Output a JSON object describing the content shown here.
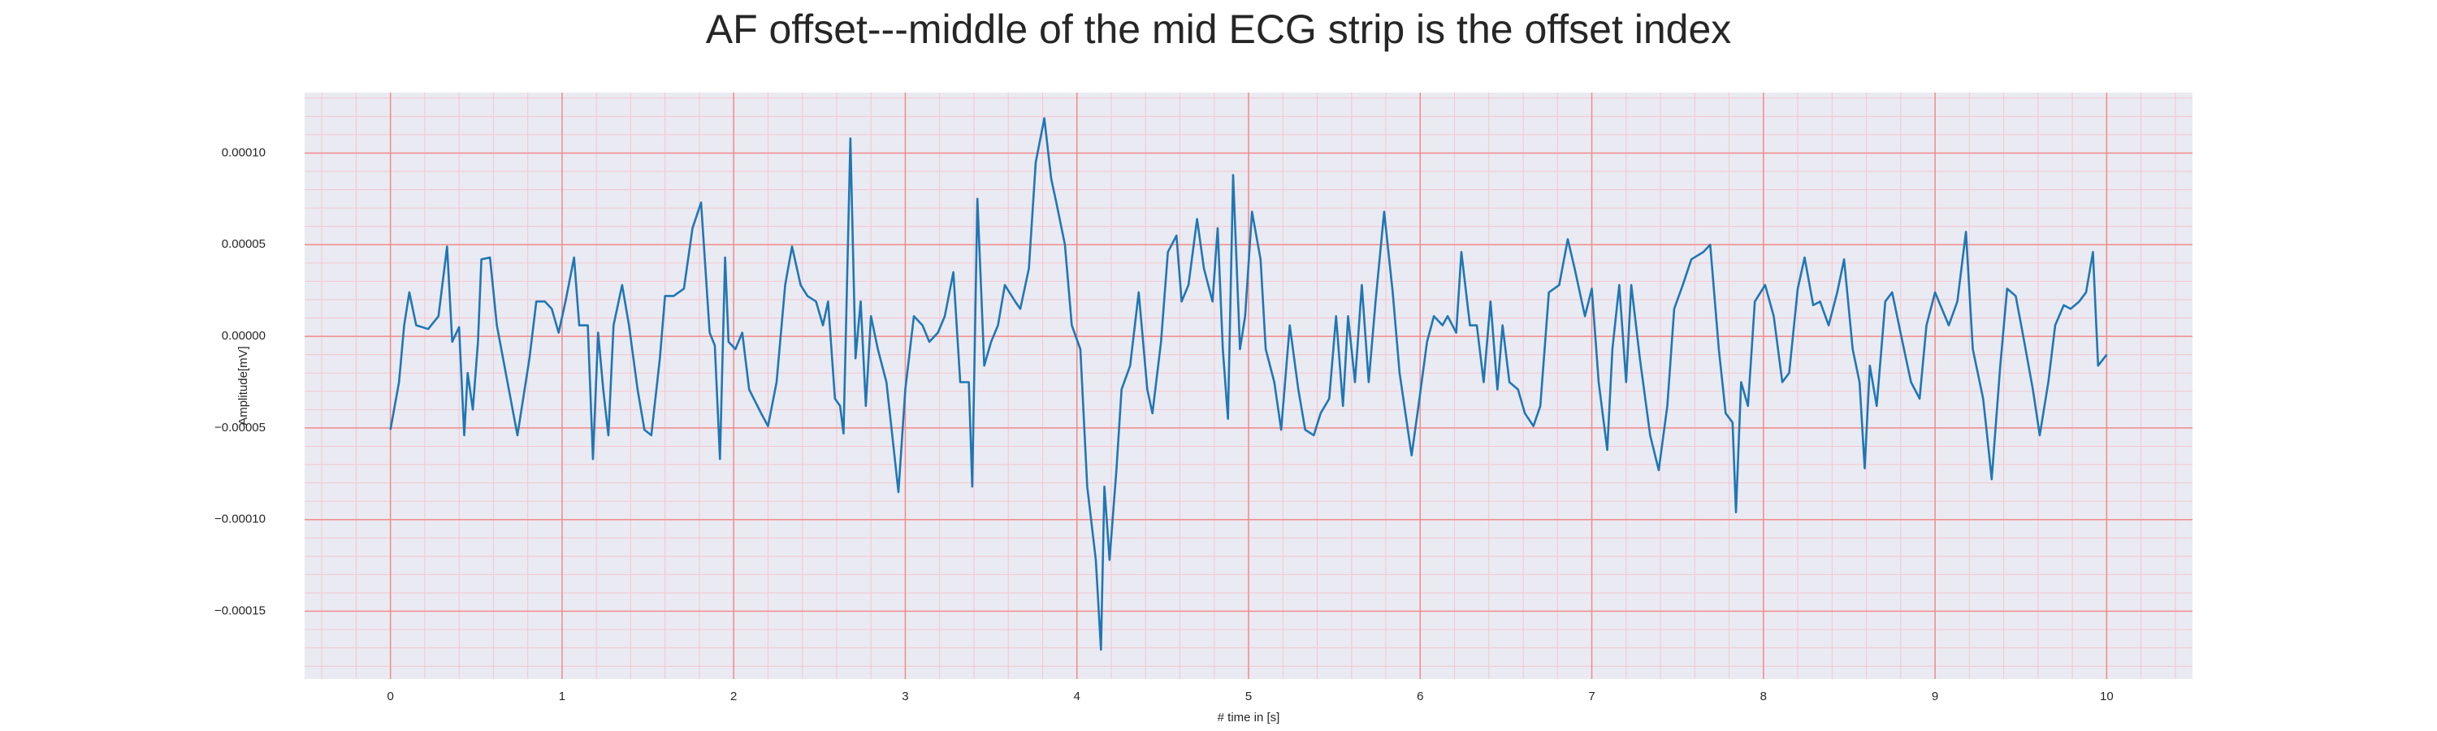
{
  "chart_data": {
    "type": "line",
    "title": "AF offset---middle of the mid ECG strip is the offset index",
    "xlabel": "# time in [s]",
    "ylabel": "Amplitude[mV]",
    "xlim": [
      -0.5,
      10.5
    ],
    "ylim": [
      -0.000187,
      0.000133
    ],
    "xticks": [
      0,
      1,
      2,
      3,
      4,
      5,
      6,
      7,
      8,
      9,
      10
    ],
    "yticks": [
      {
        "value": -0.00015,
        "label": "−0.00015"
      },
      {
        "value": -0.0001,
        "label": "−0.00010"
      },
      {
        "value": -5e-05,
        "label": "−0.00005"
      },
      {
        "value": 0,
        "label": "0.00000"
      },
      {
        "value": 5e-05,
        "label": "0.00005"
      },
      {
        "value": 0.0001,
        "label": "0.00010"
      }
    ],
    "xminorticks": [
      -0.4,
      -0.2,
      0.2,
      0.4,
      0.6,
      0.8,
      1.2,
      1.4,
      1.6,
      1.8,
      2.2,
      2.4,
      2.6,
      2.8,
      3.2,
      3.4,
      3.6,
      3.8,
      4.2,
      4.4,
      4.6,
      4.8,
      5.2,
      5.4,
      5.6,
      5.8,
      6.2,
      6.4,
      6.6,
      6.8,
      7.2,
      7.4,
      7.6,
      7.8,
      8.2,
      8.4,
      8.6,
      8.8,
      9.2,
      9.4,
      9.6,
      9.8,
      10.2,
      10.4
    ],
    "yminorticks": [
      -0.00018,
      -0.00017,
      -0.00016,
      -0.00014,
      -0.00013,
      -0.00012,
      -0.00011,
      -9e-05,
      -8e-05,
      -7e-05,
      -6e-05,
      -4e-05,
      -3e-05,
      -2e-05,
      -1e-05,
      1e-05,
      2e-05,
      3e-05,
      4e-05,
      6e-05,
      7e-05,
      8e-05,
      9e-05,
      0.00011,
      0.00012,
      0.00013
    ],
    "grid": true,
    "background": "#eaeaf2",
    "major_grid_color": "#f08a8a",
    "minor_grid_color": "#f3c6d0",
    "series": [
      {
        "color": "#1f77b4",
        "x": [
          0,
          0.05,
          0.08,
          0.11,
          0.15,
          0.22,
          0.28,
          0.33,
          0.36,
          0.4,
          0.43,
          0.45,
          0.48,
          0.51,
          0.53,
          0.58,
          0.62,
          0.69,
          0.74,
          0.81,
          0.85,
          0.9,
          0.94,
          0.98,
          1.02,
          1.07,
          1.1,
          1.15,
          1.18,
          1.21,
          1.24,
          1.27,
          1.3,
          1.35,
          1.39,
          1.44,
          1.48,
          1.52,
          1.57,
          1.6,
          1.65,
          1.71,
          1.76,
          1.81,
          1.86,
          1.89,
          1.92,
          1.95,
          1.97,
          2.01,
          2.05,
          2.09,
          2.16,
          2.2,
          2.25,
          2.3,
          2.34,
          2.39,
          2.43,
          2.48,
          2.52,
          2.55,
          2.59,
          2.62,
          2.64,
          2.68,
          2.71,
          2.74,
          2.77,
          2.8,
          2.84,
          2.89,
          2.91,
          2.96,
          3.0,
          3.05,
          3.1,
          3.14,
          3.19,
          3.23,
          3.28,
          3.32,
          3.37,
          3.39,
          3.42,
          3.46,
          3.5,
          3.54,
          3.58,
          3.64,
          3.67,
          3.72,
          3.76,
          3.81,
          3.85,
          3.88,
          3.93,
          3.97,
          4.02,
          4.06,
          4.11,
          4.14,
          4.16,
          4.19,
          4.23,
          4.26,
          4.31,
          4.36,
          4.41,
          4.44,
          4.49,
          4.53,
          4.58,
          4.61,
          4.65,
          4.7,
          4.74,
          4.79,
          4.82,
          4.85,
          4.88,
          4.91,
          4.95,
          4.98,
          5.02,
          5.07,
          5.1,
          5.15,
          5.19,
          5.24,
          5.29,
          5.33,
          5.38,
          5.42,
          5.47,
          5.51,
          5.55,
          5.58,
          5.62,
          5.66,
          5.7,
          5.74,
          5.79,
          5.84,
          5.88,
          5.95,
          5.99,
          6.04,
          6.08,
          6.13,
          6.16,
          6.21,
          6.24,
          6.29,
          6.33,
          6.37,
          6.41,
          6.45,
          6.48,
          6.52,
          6.57,
          6.61,
          6.66,
          6.7,
          6.75,
          6.81,
          6.86,
          6.9,
          6.96,
          7.0,
          7.04,
          7.09,
          7.12,
          7.16,
          7.2,
          7.23,
          7.28,
          7.34,
          7.39,
          7.44,
          7.48,
          7.53,
          7.58,
          7.65,
          7.69,
          7.74,
          7.78,
          7.82,
          7.84,
          7.87,
          7.91,
          7.95,
          8.01,
          8.06,
          8.11,
          8.15,
          8.2,
          8.24,
          8.29,
          8.33,
          8.38,
          8.43,
          8.47,
          8.52,
          8.56,
          8.59,
          8.62,
          8.66,
          8.71,
          8.75,
          8.81,
          8.86,
          8.91,
          8.95,
          9.0,
          9.04,
          9.08,
          9.13,
          9.18,
          9.22,
          9.28,
          9.3,
          9.33,
          9.38,
          9.42,
          9.47,
          9.51,
          9.57,
          9.61,
          9.66,
          9.7,
          9.75,
          9.79,
          9.84,
          9.88,
          9.92,
          9.95,
          10.0
        ],
        "values": [
          -5.1e-05,
          -2.5e-05,
          6e-06,
          2.4e-05,
          6e-06,
          4e-06,
          1.1e-05,
          4.9e-05,
          -3e-06,
          5e-06,
          -5.4e-05,
          -2e-05,
          -4e-05,
          -3e-06,
          4.2e-05,
          4.3e-05,
          6e-06,
          -2.9e-05,
          -5.4e-05,
          -1.2e-05,
          1.9e-05,
          1.9e-05,
          1.5e-05,
          2e-06,
          1.9e-05,
          4.3e-05,
          6e-06,
          6e-06,
          -6.7e-05,
          2e-06,
          -2.9e-05,
          -5.4e-05,
          6e-06,
          2.8e-05,
          6e-06,
          -2.9e-05,
          -5.1e-05,
          -5.4e-05,
          -1.2e-05,
          2.2e-05,
          2.2e-05,
          2.6e-05,
          5.9e-05,
          7.3e-05,
          2e-06,
          -5e-06,
          -6.7e-05,
          4.3e-05,
          -3e-06,
          -7e-06,
          2e-06,
          -2.9e-05,
          -4.2e-05,
          -4.9e-05,
          -2.5e-05,
          2.8e-05,
          4.9e-05,
          2.8e-05,
          2.2e-05,
          1.9e-05,
          6e-06,
          1.9e-05,
          -3.4e-05,
          -3.8e-05,
          -5.3e-05,
          0.000108,
          -1.2e-05,
          1.9e-05,
          -3.8e-05,
          1.1e-05,
          -7e-06,
          -2.5e-05,
          -4.2e-05,
          -8.5e-05,
          -2.9e-05,
          1.1e-05,
          6e-06,
          -3e-06,
          2e-06,
          1.1e-05,
          3.5e-05,
          -2.5e-05,
          -2.5e-05,
          -8.2e-05,
          7.5e-05,
          -1.6e-05,
          -3e-06,
          6e-06,
          2.8e-05,
          1.9e-05,
          1.5e-05,
          3.7e-05,
          9.5e-05,
          0.000119,
          8.6e-05,
          7.3e-05,
          5e-05,
          6e-06,
          -7e-06,
          -8.2e-05,
          -0.000122,
          -0.000171,
          -8.2e-05,
          -0.000122,
          -7.3e-05,
          -2.9e-05,
          -1.6e-05,
          2.4e-05,
          -2.9e-05,
          -4.2e-05,
          -3e-06,
          4.6e-05,
          5.5e-05,
          1.9e-05,
          2.8e-05,
          6.4e-05,
          3.7e-05,
          1.9e-05,
          5.9e-05,
          -7e-06,
          -4.5e-05,
          8.8e-05,
          -7e-06,
          1.1e-05,
          6.8e-05,
          4.2e-05,
          -7e-06,
          -2.5e-05,
          -5.1e-05,
          6e-06,
          -2.9e-05,
          -5.1e-05,
          -5.4e-05,
          -4.2e-05,
          -3.4e-05,
          1.1e-05,
          -3.8e-05,
          1.1e-05,
          -2.5e-05,
          2.8e-05,
          -2.5e-05,
          1.9e-05,
          6.8e-05,
          2.4e-05,
          -2e-05,
          -6.5e-05,
          -3.8e-05,
          -3e-06,
          1.1e-05,
          6e-06,
          1.1e-05,
          2e-06,
          4.6e-05,
          6e-06,
          6e-06,
          -2.5e-05,
          1.9e-05,
          -2.9e-05,
          6e-06,
          -2.5e-05,
          -2.9e-05,
          -4.2e-05,
          -4.9e-05,
          -3.8e-05,
          2.4e-05,
          2.8e-05,
          5.3e-05,
          3.7e-05,
          1.1e-05,
          2.6e-05,
          -2.5e-05,
          -6.2e-05,
          -7e-06,
          2.8e-05,
          -2.5e-05,
          2.8e-05,
          -1.2e-05,
          -5.4e-05,
          -7.3e-05,
          -3.8e-05,
          1.5e-05,
          2.8e-05,
          4.2e-05,
          4.6e-05,
          5e-05,
          -7e-06,
          -4.2e-05,
          -4.7e-05,
          -9.6e-05,
          -2.5e-05,
          -3.8e-05,
          1.9e-05,
          2.8e-05,
          1.1e-05,
          -2.5e-05,
          -2e-05,
          2.6e-05,
          4.3e-05,
          1.7e-05,
          1.9e-05,
          6e-06,
          2.4e-05,
          4.2e-05,
          -7e-06,
          -2.5e-05,
          -7.2e-05,
          -1.6e-05,
          -3.8e-05,
          1.9e-05,
          2.4e-05,
          -3e-06,
          -2.5e-05,
          -3.4e-05,
          6e-06,
          2.4e-05,
          1.5e-05,
          6e-06,
          1.9e-05,
          5.7e-05,
          -7e-06,
          -3.4e-05,
          -5.1e-05,
          -7.8e-05,
          -1.6e-05,
          2.6e-05,
          2.2e-05,
          2e-06,
          -2.9e-05,
          -5.4e-05,
          -2.5e-05,
          6e-06,
          1.7e-05,
          1.5e-05,
          1.9e-05,
          2.4e-05,
          4.6e-05,
          -1.6e-05,
          -1e-05
        ]
      }
    ]
  }
}
